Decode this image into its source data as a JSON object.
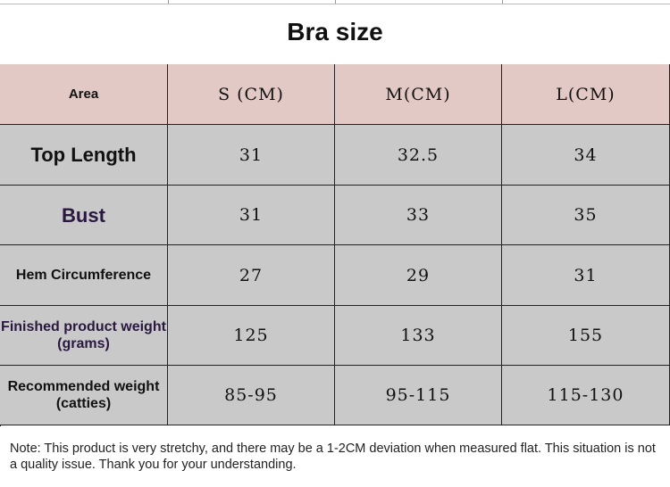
{
  "header": {
    "title": "Bra size"
  },
  "table": {
    "columns": [
      "Area",
      "S (CM)",
      "M(CM)",
      "L(CM)"
    ],
    "rows": [
      [
        "Top Length",
        31,
        32.5,
        34
      ],
      [
        "Bust",
        31,
        33,
        35
      ],
      [
        "Hem Circumference",
        27,
        29,
        31
      ],
      [
        "Finished product weight (grams)",
        125,
        133,
        155
      ],
      [
        "Recommended weight (catties)",
        "85-95",
        "95-115",
        "115-130"
      ]
    ]
  },
  "note": "Note: This product is very stretchy, and there may be a 1-2CM deviation when measured flat. This situation is not a quality issue. Thank you for your understanding."
}
